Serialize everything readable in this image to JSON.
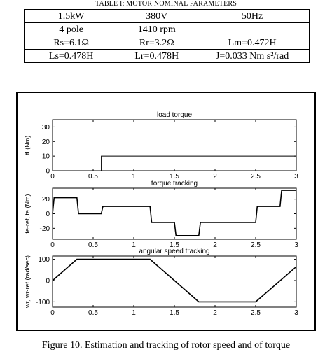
{
  "table": {
    "caption": "TABLE I: MOTOR NOMINAL PARAMETERS",
    "rows": [
      [
        "1.5kW",
        "380V",
        "50Hz"
      ],
      [
        "4 pole",
        "1410 rpm",
        ""
      ],
      [
        "Rs=6.1Ω",
        "Rr=3.2Ω",
        "Lm=0.472H"
      ],
      [
        "Ls=0.478H",
        "Lr=0.478H",
        "J=0.033 Nm s²/rad"
      ]
    ]
  },
  "figure": {
    "caption": "Figure 10.  Estimation and tracking of rotor speed and of torque"
  },
  "chart_data": [
    {
      "type": "line",
      "title": "load torque",
      "xlabel": "",
      "ylabel": "tL(Nm)",
      "xlim": [
        0,
        3
      ],
      "ylim": [
        0,
        35
      ],
      "xticks": [
        0,
        0.5,
        1,
        1.5,
        2,
        2.5,
        3
      ],
      "xtick_labels": [
        "0",
        "0.5",
        "1",
        "1.5",
        "2",
        "2.5",
        "3"
      ],
      "yticks": [
        0,
        10,
        20,
        30
      ],
      "ytick_labels": [
        "0",
        "10",
        "20",
        "30"
      ],
      "grid": false,
      "series": [
        {
          "x": [
            0,
            0.6,
            0.6,
            3
          ],
          "y": [
            0,
            0,
            10,
            10
          ]
        }
      ]
    },
    {
      "type": "line",
      "title": "torque tracking",
      "xlabel": "",
      "ylabel": "te-ref, te (Nm)",
      "xlim": [
        0,
        3
      ],
      "ylim": [
        -35,
        35
      ],
      "xticks": [
        0,
        0.5,
        1,
        1.5,
        2,
        2.5,
        3
      ],
      "xtick_labels": [
        "0",
        "0.5",
        "1",
        "1.5",
        "2",
        "2.5",
        "3"
      ],
      "yticks": [
        -20,
        0,
        20
      ],
      "ytick_labels": [
        "-20",
        "0",
        "20"
      ],
      "grid": false,
      "series": [
        {
          "x": [
            0,
            0.02,
            0.3,
            0.32,
            0.6,
            0.62,
            1.2,
            1.22,
            1.5,
            1.52,
            1.8,
            1.82,
            2.5,
            2.52,
            2.8,
            2.82,
            3
          ],
          "y": [
            0,
            22,
            22,
            0,
            0,
            10,
            10,
            -12,
            -12,
            -30,
            -30,
            -12,
            -12,
            10,
            10,
            32,
            32
          ]
        }
      ]
    },
    {
      "type": "line",
      "title": "angular speed tracking",
      "xlabel": "",
      "ylabel": "wr, wr-ref (rad/sec)",
      "xlim": [
        0,
        3
      ],
      "ylim": [
        -125,
        115
      ],
      "xticks": [
        0,
        0.5,
        1,
        1.5,
        2,
        2.5,
        3
      ],
      "xtick_labels": [
        "0",
        "0.5",
        "1",
        "1.5",
        "2",
        "2.5",
        "3"
      ],
      "yticks": [
        -100,
        0,
        100
      ],
      "ytick_labels": [
        "-100",
        "0",
        "100"
      ],
      "grid": false,
      "series": [
        {
          "x": [
            0,
            0.3,
            1.2,
            1.8,
            2.5,
            3
          ],
          "y": [
            0,
            100,
            100,
            -100,
            -100,
            65
          ]
        }
      ]
    }
  ]
}
